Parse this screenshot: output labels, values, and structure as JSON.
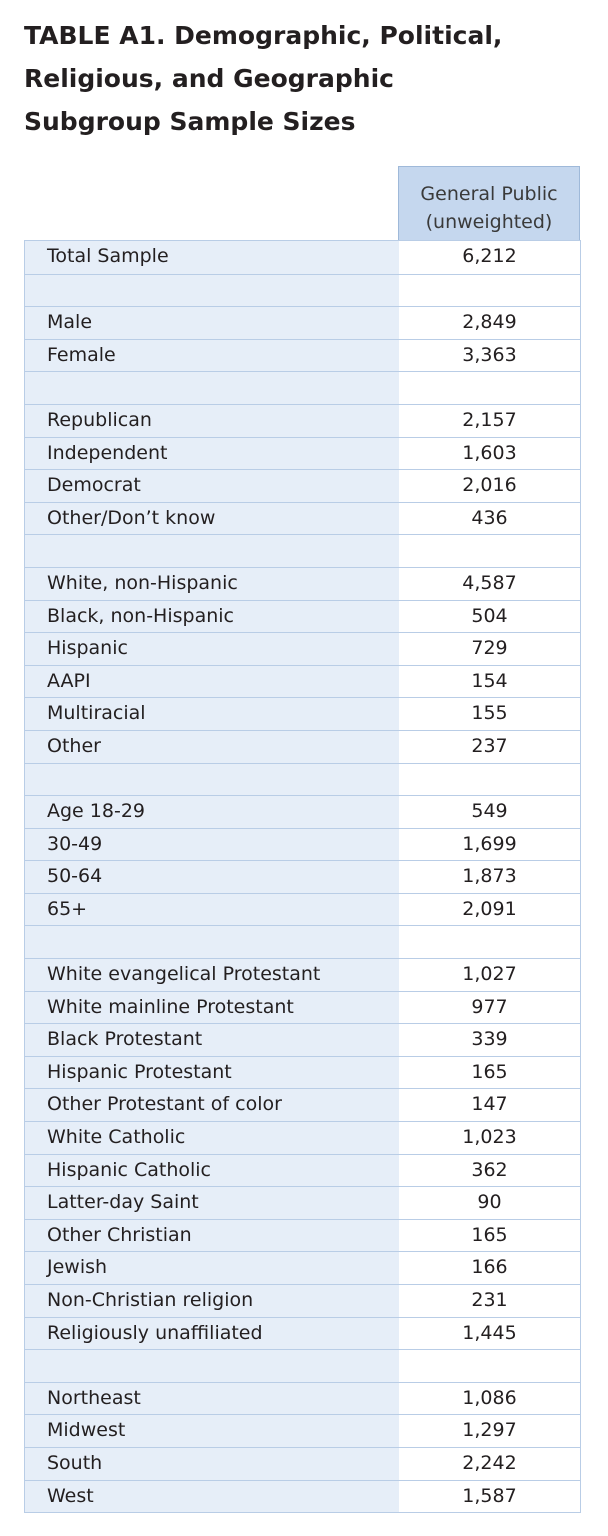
{
  "title": {
    "line1": "TABLE A1. Demographic, Political,",
    "line2": "Religious, and Geographic",
    "line3": "Subgroup Sample Sizes"
  },
  "column_header": {
    "line1": "General Public",
    "line2": "(unweighted)"
  },
  "rows": [
    {
      "label": "Total Sample",
      "value": "6,212"
    },
    {
      "label": "",
      "value": ""
    },
    {
      "label": "Male",
      "value": "2,849"
    },
    {
      "label": "Female",
      "value": "3,363"
    },
    {
      "label": "",
      "value": ""
    },
    {
      "label": "Republican",
      "value": "2,157"
    },
    {
      "label": "Independent",
      "value": "1,603"
    },
    {
      "label": "Democrat",
      "value": "2,016"
    },
    {
      "label": "Other/Don’t know",
      "value": "436"
    },
    {
      "label": "",
      "value": ""
    },
    {
      "label": "White, non-Hispanic",
      "value": "4,587"
    },
    {
      "label": "Black, non-Hispanic",
      "value": "504"
    },
    {
      "label": "Hispanic",
      "value": "729"
    },
    {
      "label": "AAPI",
      "value": "154"
    },
    {
      "label": "Multiracial",
      "value": "155"
    },
    {
      "label": "Other",
      "value": "237"
    },
    {
      "label": "",
      "value": ""
    },
    {
      "label": "Age 18-29",
      "value": "549"
    },
    {
      "label": "30-49",
      "value": "1,699"
    },
    {
      "label": "50-64",
      "value": "1,873"
    },
    {
      "label": "65+",
      "value": "2,091"
    },
    {
      "label": "",
      "value": ""
    },
    {
      "label": "White evangelical Protestant",
      "value": "1,027"
    },
    {
      "label": "White mainline Protestant",
      "value": "977"
    },
    {
      "label": "Black Protestant",
      "value": "339"
    },
    {
      "label": "Hispanic Protestant",
      "value": "165"
    },
    {
      "label": "Other Protestant of color",
      "value": "147"
    },
    {
      "label": "White Catholic",
      "value": "1,023"
    },
    {
      "label": "Hispanic Catholic",
      "value": "362"
    },
    {
      "label": "Latter-day Saint",
      "value": "90"
    },
    {
      "label": "Other Christian",
      "value": "165"
    },
    {
      "label": "Jewish",
      "value": "166"
    },
    {
      "label": "Non-Christian religion",
      "value": "231"
    },
    {
      "label": "Religiously unaffiliated",
      "value": "1,445"
    },
    {
      "label": "",
      "value": ""
    },
    {
      "label": "Northeast",
      "value": "1,086"
    },
    {
      "label": "Midwest",
      "value": "1,297"
    },
    {
      "label": "South",
      "value": "2,242"
    },
    {
      "label": "West",
      "value": "1,587"
    }
  ]
}
